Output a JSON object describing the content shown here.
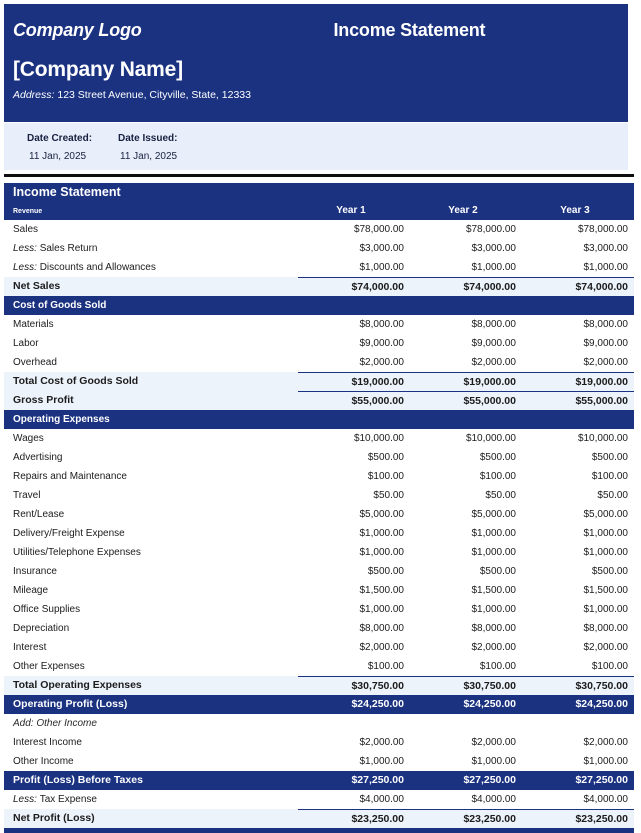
{
  "header": {
    "logo_text": "Company Logo",
    "title": "Income Statement",
    "company_name": "[Company Name]",
    "address_label": "Address:",
    "address": "123 Street Avenue, Cityville, State, 12333"
  },
  "date_band": {
    "created_label": "Date Created:",
    "created_value": "11 Jan, 2025",
    "issued_label": "Date Issued:",
    "issued_value": "11 Jan, 2025"
  },
  "table": {
    "title": "Income Statement",
    "first_header": "Revenue",
    "columns": [
      "Year 1",
      "Year 2",
      "Year 3"
    ],
    "rows": [
      {
        "type": "item",
        "prefix": "",
        "label": "Sales",
        "values": [
          "$78,000.00",
          "$78,000.00",
          "$78,000.00"
        ]
      },
      {
        "type": "item",
        "prefix": "Less:",
        "label": "Sales Return",
        "values": [
          "$3,000.00",
          "$3,000.00",
          "$3,000.00"
        ]
      },
      {
        "type": "item",
        "prefix": "Less:",
        "label": "Discounts and Allowances",
        "values": [
          "$1,000.00",
          "$1,000.00",
          "$1,000.00"
        ]
      },
      {
        "type": "total",
        "prefix": "",
        "label": "Net Sales",
        "values": [
          "$74,000.00",
          "$74,000.00",
          "$74,000.00"
        ]
      },
      {
        "type": "section",
        "prefix": "",
        "label": "Cost of Goods Sold",
        "values": []
      },
      {
        "type": "item",
        "prefix": "",
        "label": "Materials",
        "values": [
          "$8,000.00",
          "$8,000.00",
          "$8,000.00"
        ]
      },
      {
        "type": "item",
        "prefix": "",
        "label": "Labor",
        "values": [
          "$9,000.00",
          "$9,000.00",
          "$9,000.00"
        ]
      },
      {
        "type": "item",
        "prefix": "",
        "label": "Overhead",
        "values": [
          "$2,000.00",
          "$2,000.00",
          "$2,000.00"
        ]
      },
      {
        "type": "total",
        "prefix": "",
        "label": "Total Cost of Goods Sold",
        "values": [
          "$19,000.00",
          "$19,000.00",
          "$19,000.00"
        ]
      },
      {
        "type": "total",
        "prefix": "",
        "label": "Gross Profit",
        "values": [
          "$55,000.00",
          "$55,000.00",
          "$55,000.00"
        ]
      },
      {
        "type": "section",
        "prefix": "",
        "label": "Operating Expenses",
        "values": []
      },
      {
        "type": "item",
        "prefix": "",
        "label": "Wages",
        "values": [
          "$10,000.00",
          "$10,000.00",
          "$10,000.00"
        ]
      },
      {
        "type": "item",
        "prefix": "",
        "label": "Advertising",
        "values": [
          "$500.00",
          "$500.00",
          "$500.00"
        ]
      },
      {
        "type": "item",
        "prefix": "",
        "label": "Repairs and Maintenance",
        "values": [
          "$100.00",
          "$100.00",
          "$100.00"
        ]
      },
      {
        "type": "item",
        "prefix": "",
        "label": "Travel",
        "values": [
          "$50.00",
          "$50.00",
          "$50.00"
        ]
      },
      {
        "type": "item",
        "prefix": "",
        "label": "Rent/Lease",
        "values": [
          "$5,000.00",
          "$5,000.00",
          "$5,000.00"
        ]
      },
      {
        "type": "item",
        "prefix": "",
        "label": "Delivery/Freight Expense",
        "values": [
          "$1,000.00",
          "$1,000.00",
          "$1,000.00"
        ]
      },
      {
        "type": "item",
        "prefix": "",
        "label": "Utilities/Telephone Expenses",
        "values": [
          "$1,000.00",
          "$1,000.00",
          "$1,000.00"
        ]
      },
      {
        "type": "item",
        "prefix": "",
        "label": "Insurance",
        "values": [
          "$500.00",
          "$500.00",
          "$500.00"
        ]
      },
      {
        "type": "item",
        "prefix": "",
        "label": "Mileage",
        "values": [
          "$1,500.00",
          "$1,500.00",
          "$1,500.00"
        ]
      },
      {
        "type": "item",
        "prefix": "",
        "label": "Office Supplies",
        "values": [
          "$1,000.00",
          "$1,000.00",
          "$1,000.00"
        ]
      },
      {
        "type": "item",
        "prefix": "",
        "label": "Depreciation",
        "values": [
          "$8,000.00",
          "$8,000.00",
          "$8,000.00"
        ]
      },
      {
        "type": "item",
        "prefix": "",
        "label": "Interest",
        "values": [
          "$2,000.00",
          "$2,000.00",
          "$2,000.00"
        ]
      },
      {
        "type": "item",
        "prefix": "",
        "label": "Other Expenses",
        "values": [
          "$100.00",
          "$100.00",
          "$100.00"
        ]
      },
      {
        "type": "total",
        "prefix": "",
        "label": "Total Operating Expenses",
        "values": [
          "$30,750.00",
          "$30,750.00",
          "$30,750.00"
        ]
      },
      {
        "type": "highlight",
        "prefix": "",
        "label": "Operating Profit (Loss)",
        "values": [
          "$24,250.00",
          "$24,250.00",
          "$24,250.00"
        ]
      },
      {
        "type": "subheader",
        "prefix": "",
        "label": "Add: Other Income",
        "values": []
      },
      {
        "type": "item",
        "prefix": "",
        "label": "Interest Income",
        "values": [
          "$2,000.00",
          "$2,000.00",
          "$2,000.00"
        ]
      },
      {
        "type": "item",
        "prefix": "",
        "label": "Other Income",
        "values": [
          "$1,000.00",
          "$1,000.00",
          "$1,000.00"
        ]
      },
      {
        "type": "highlight",
        "prefix": "",
        "label": "Profit (Loss) Before Taxes",
        "values": [
          "$27,250.00",
          "$27,250.00",
          "$27,250.00"
        ]
      },
      {
        "type": "item",
        "prefix": "Less:",
        "label": "Tax Expense",
        "values": [
          "$4,000.00",
          "$4,000.00",
          "$4,000.00"
        ]
      },
      {
        "type": "total",
        "prefix": "",
        "label": "Net Profit (Loss)",
        "values": [
          "$23,250.00",
          "$23,250.00",
          "$23,250.00"
        ]
      }
    ]
  },
  "colors": {
    "navy": "#1b3280",
    "total_row_bg": "#edf3fb",
    "date_band_bg": "#e9effa",
    "divider_rule": "#0e0e0e",
    "body_text": "#1c1c1c"
  }
}
